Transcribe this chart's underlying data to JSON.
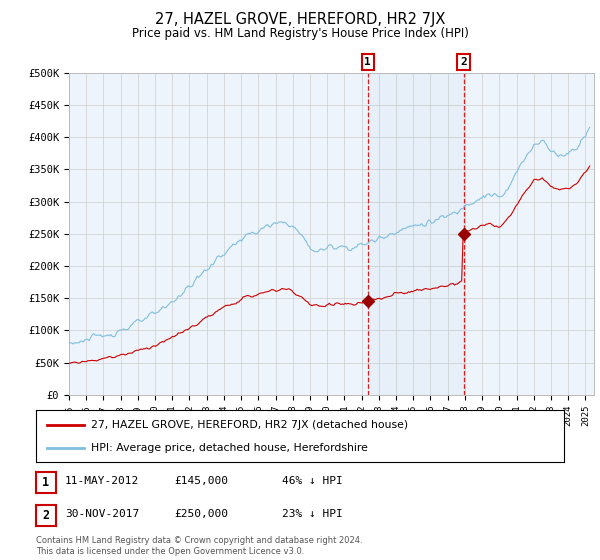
{
  "title": "27, HAZEL GROVE, HEREFORD, HR2 7JX",
  "subtitle": "Price paid vs. HM Land Registry's House Price Index (HPI)",
  "hpi_color": "#7fbfdf",
  "price_color": "#cc0000",
  "dot_color": "#990000",
  "background_color": "#ffffff",
  "plot_bg_color": "#eef4fb",
  "grid_color": "#cccccc",
  "ylim": [
    0,
    500000
  ],
  "yticks": [
    0,
    50000,
    100000,
    150000,
    200000,
    250000,
    300000,
    350000,
    400000,
    450000,
    500000
  ],
  "ytick_labels": [
    "£0",
    "£50K",
    "£100K",
    "£150K",
    "£200K",
    "£250K",
    "£300K",
    "£350K",
    "£400K",
    "£450K",
    "£500K"
  ],
  "xlim_start": 1995.0,
  "xlim_end": 2025.5,
  "xtick_years": [
    1995,
    1996,
    1997,
    1998,
    1999,
    2000,
    2001,
    2002,
    2003,
    2004,
    2005,
    2006,
    2007,
    2008,
    2009,
    2010,
    2011,
    2012,
    2013,
    2014,
    2015,
    2016,
    2017,
    2018,
    2019,
    2020,
    2021,
    2022,
    2023,
    2024,
    2025
  ],
  "vline1_x": 2012.36,
  "vline2_x": 2017.92,
  "sale1_date": "11-MAY-2012",
  "sale1_price": "£145,000",
  "sale1_hpi": "46% ↓ HPI",
  "sale2_date": "30-NOV-2017",
  "sale2_price": "£250,000",
  "sale2_hpi": "23% ↓ HPI",
  "legend_line1": "27, HAZEL GROVE, HEREFORD, HR2 7JX (detached house)",
  "legend_line2": "HPI: Average price, detached house, Herefordshire",
  "footer": "Contains HM Land Registry data © Crown copyright and database right 2024.\nThis data is licensed under the Open Government Licence v3.0.",
  "sale1_dot_x": 2012.36,
  "sale1_dot_y": 145000,
  "sale2_dot_x": 2017.92,
  "sale2_dot_y": 250000
}
